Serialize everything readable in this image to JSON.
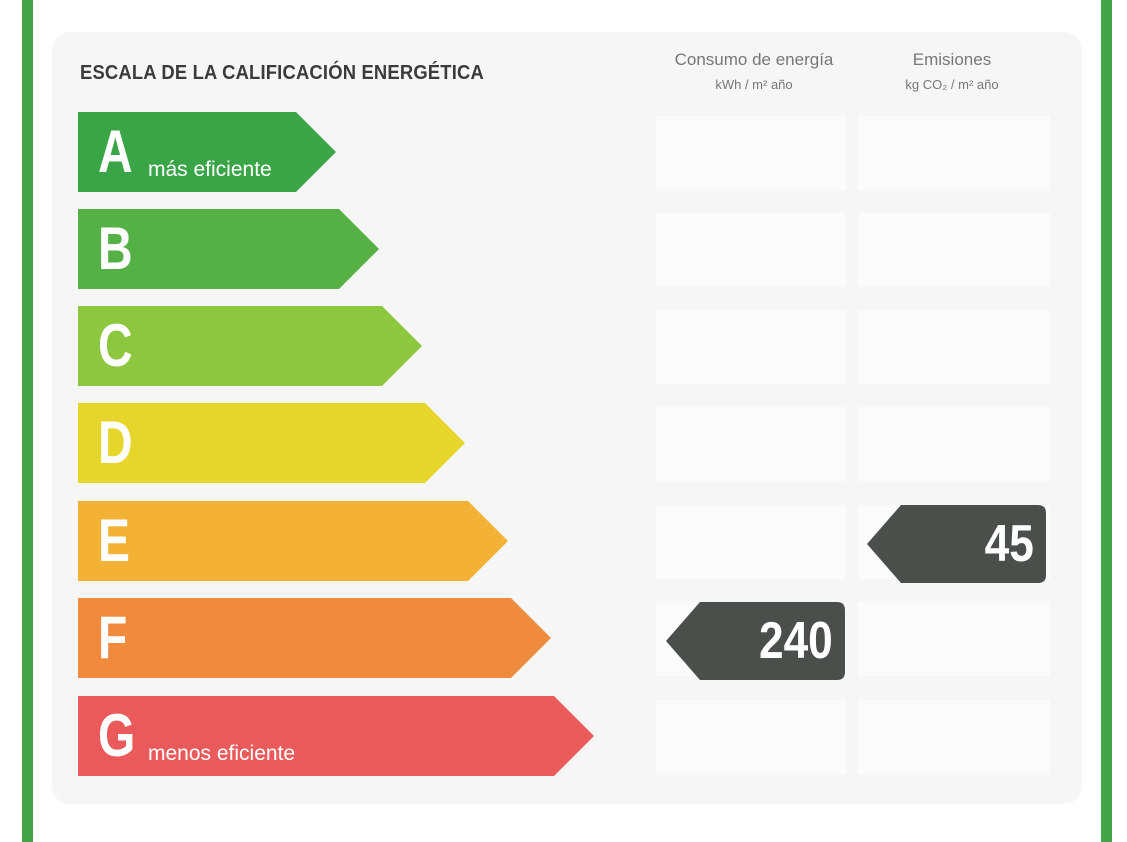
{
  "title": "ESCALA DE LA CALIFICACIÓN ENERGÉTICA",
  "columns": {
    "consumption": {
      "title": "Consumo de energía",
      "unit": "kWh / m² año"
    },
    "emissions": {
      "title": "Emisiones",
      "unit": "kg CO₂ / m² año"
    }
  },
  "ratings": [
    {
      "letter": "A",
      "label": "más eficiente",
      "color": "#3aa547"
    },
    {
      "letter": "B",
      "label": "",
      "color": "#55b046"
    },
    {
      "letter": "C",
      "label": "",
      "color": "#8dc63f"
    },
    {
      "letter": "D",
      "label": "",
      "color": "#e6d62b"
    },
    {
      "letter": "E",
      "label": "",
      "color": "#f3b235"
    },
    {
      "letter": "F",
      "label": "",
      "color": "#f08a3c"
    },
    {
      "letter": "G",
      "label": "menos eficiente",
      "color": "#eb5a5a"
    }
  ],
  "results": {
    "consumption": {
      "value": "240",
      "rating": "F"
    },
    "emissions": {
      "value": "45",
      "rating": "E"
    }
  },
  "colors": {
    "frame": "#43a548",
    "badge": "#4a4f4c"
  }
}
